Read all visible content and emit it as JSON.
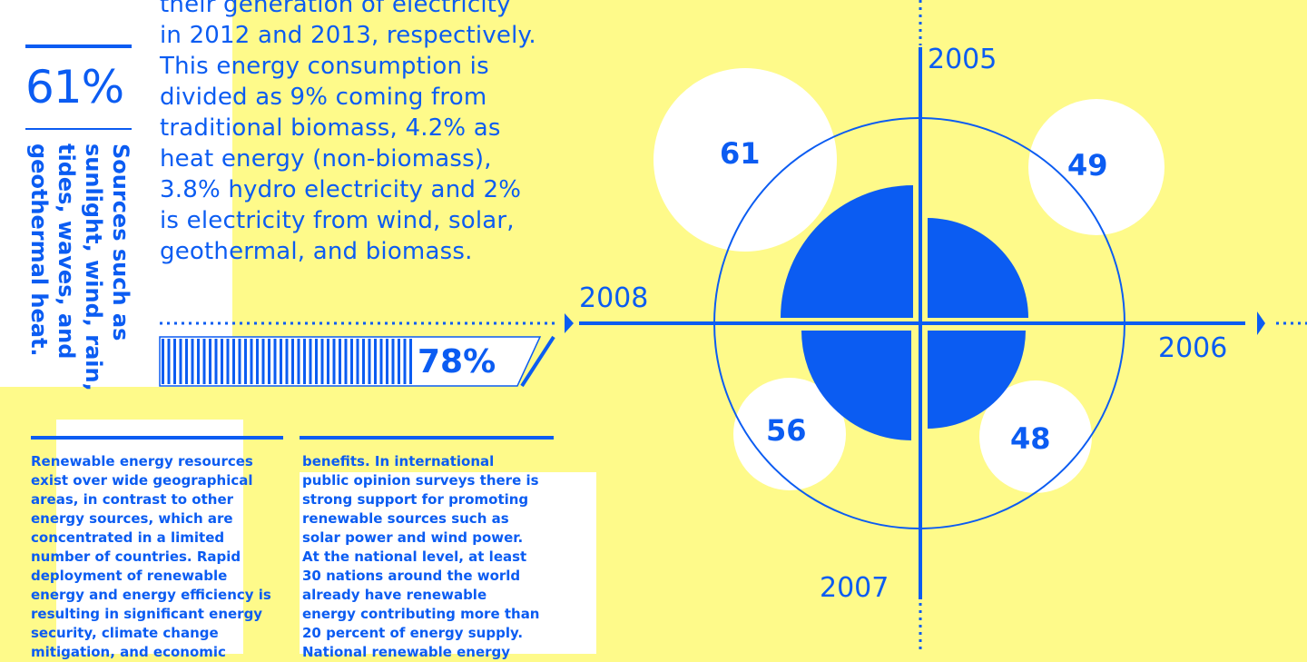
{
  "intro": {
    "lines": [
      "their generation of electricity",
      "in 2012 and 2013, respectively.",
      "This energy consumption is",
      "divided as 9% coming from",
      "traditional biomass, 4.2% as",
      "heat energy (non-biomass),",
      "3.8% hydro electricity and 2%",
      "is electricity from wind, solar,",
      "geothermal, and biomass."
    ]
  },
  "stat": {
    "big_percent": "61%"
  },
  "sources": {
    "lines": [
      "Sources such as",
      "sunlight, wind, rain,",
      "tides, waves, and",
      "geothermal heat."
    ]
  },
  "progress": {
    "label": "78%",
    "value": 0.78
  },
  "column1": {
    "lines": [
      "Renewable energy resources",
      "exist over wide geographical",
      "areas, in contrast to other",
      "energy sources, which are",
      "concentrated in a limited",
      "number of countries. Rapid",
      "deployment of renewable",
      "energy and energy efficiency is",
      "resulting in significant energy",
      "security, climate change",
      "mitigation, and economic"
    ]
  },
  "column2": {
    "lines": [
      "benefits. In international",
      "public opinion surveys there is",
      "strong support for promoting",
      "renewable sources such as",
      "solar power and wind power.",
      "At the national level, at least",
      "30 nations around the world",
      "already have renewable",
      "energy contributing more than",
      "20 percent of energy supply.",
      "National renewable energy"
    ]
  },
  "chart": {
    "years": {
      "top": "2005",
      "right": "2006",
      "bottom": "2007",
      "left": "2008"
    },
    "bubbles": {
      "2005": "61",
      "2006": "49",
      "2007": "48",
      "2008": "56"
    }
  },
  "colors": {
    "accent": "#0b5cf2",
    "background": "#fefa8a",
    "panel": "#ffffff"
  }
}
